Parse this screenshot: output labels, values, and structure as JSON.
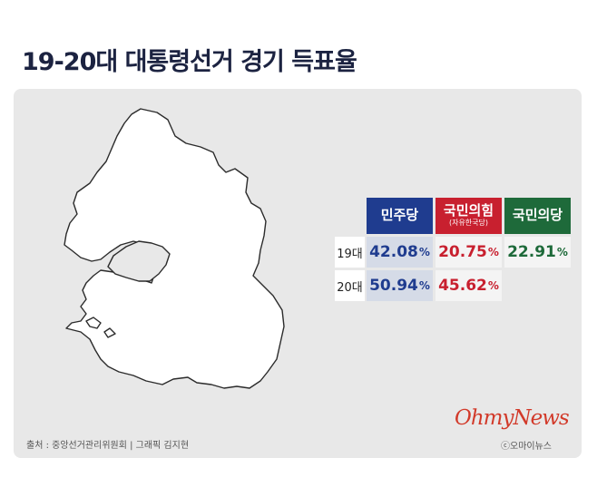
{
  "title": "19-20대 대통령선거 경기 득표율",
  "map": {
    "region": "경기",
    "fill": "#ffffff",
    "stroke": "#2b2b2b"
  },
  "table": {
    "parties": [
      {
        "name": "민주당",
        "subtitle": "",
        "color": "#1f3c8f"
      },
      {
        "name": "국민의힘",
        "subtitle": "(자유한국당)",
        "color": "#c8202f"
      },
      {
        "name": "국민의당",
        "subtitle": "",
        "color": "#1e6a3a"
      }
    ],
    "rows": [
      {
        "label": "19대",
        "values": [
          "42.08",
          "20.75",
          "22.91"
        ]
      },
      {
        "label": "20대",
        "values": [
          "50.94",
          "45.62",
          ""
        ]
      }
    ],
    "percent_sign": "%",
    "value_colors": [
      "#1f3c8f",
      "#c8202f",
      "#1e6a3a"
    ],
    "highlight_bg": "#d5dbe7"
  },
  "source": "출처 : 중앙선거관리위원회 | 그래픽 김지현",
  "logo": "OhmyNews",
  "copyright": "ⓒ오마이뉴스"
}
